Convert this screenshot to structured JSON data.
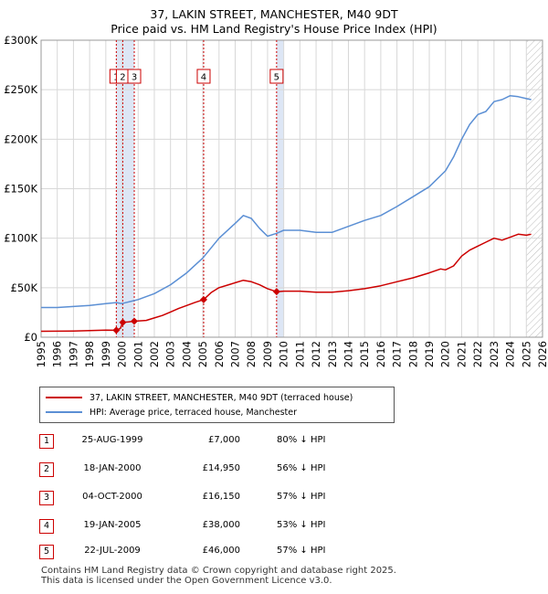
{
  "title_line1": "37, LAKIN STREET, MANCHESTER, M40 9DT",
  "title_line2": "Price paid vs. HM Land Registry's House Price Index (HPI)",
  "colors": {
    "price": "#cc0000",
    "hpi": "#5b8fd4",
    "shade": "#dde6f5",
    "grid": "#d8d8d8"
  },
  "legend": {
    "price_label": "37, LAKIN STREET, MANCHESTER, M40 9DT (terraced house)",
    "hpi_label": "HPI: Average price, terraced house, Manchester"
  },
  "transactions": [
    {
      "num": "1",
      "date": "25-AUG-1999",
      "price": "£7,000",
      "hpi": "80% ↓ HPI"
    },
    {
      "num": "2",
      "date": "18-JAN-2000",
      "price": "£14,950",
      "hpi": "56% ↓ HPI"
    },
    {
      "num": "3",
      "date": "04-OCT-2000",
      "price": "£16,150",
      "hpi": "57% ↓ HPI"
    },
    {
      "num": "4",
      "date": "19-JAN-2005",
      "price": "£38,000",
      "hpi": "53% ↓ HPI"
    },
    {
      "num": "5",
      "date": "22-JUL-2009",
      "price": "£46,000",
      "hpi": "57% ↓ HPI"
    }
  ],
  "footer_line1": "Contains HM Land Registry data © Crown copyright and database right 2025.",
  "footer_line2": "This data is licensed under the Open Government Licence v3.0.",
  "chart_data": {
    "type": "line",
    "title": "Price paid vs. HM Land Registry's House Price Index (HPI)",
    "xlabel": "",
    "ylabel": "",
    "xlim": [
      1995,
      2026
    ],
    "ylim": [
      0,
      300000
    ],
    "y_ticks": [
      0,
      50000,
      100000,
      150000,
      200000,
      250000,
      300000
    ],
    "y_tick_labels": [
      "£0",
      "£50K",
      "£100K",
      "£150K",
      "£200K",
      "£250K",
      "£300K"
    ],
    "x_ticks": [
      "1995",
      "1996",
      "1997",
      "1998",
      "1999",
      "2000",
      "2001",
      "2002",
      "2003",
      "2004",
      "2005",
      "2006",
      "2007",
      "2008",
      "2009",
      "2010",
      "2011",
      "2012",
      "2013",
      "2014",
      "2015",
      "2016",
      "2017",
      "2018",
      "2019",
      "2020",
      "2021",
      "2022",
      "2023",
      "2024",
      "2025",
      "2026"
    ],
    "shaded_ranges": [
      [
        1999.65,
        2000.76
      ],
      [
        2009.56,
        2010.0
      ]
    ],
    "hatched_from": 2025.0,
    "series": [
      {
        "name": "37, LAKIN STREET, MANCHESTER, M40 9DT (terraced house)",
        "x": [
          1995,
          1996,
          1997,
          1998,
          1999.0,
          1999.65,
          1999.65,
          1999.9,
          2000.05,
          2000.05,
          2000.4,
          2000.76,
          2000.76,
          2001.5,
          2002,
          2002.5,
          2003,
          2003.5,
          2004,
          2004.5,
          2005.05,
          2005.05,
          2005.5,
          2006,
          2006.5,
          2007,
          2007.5,
          2008,
          2008.5,
          2009,
          2009.56,
          2009.56,
          2010,
          2011,
          2012,
          2013,
          2014,
          2015,
          2016,
          2017,
          2018,
          2019,
          2019.7,
          2020,
          2020.5,
          2021,
          2021.5,
          2022,
          2022.5,
          2023,
          2023.5,
          2024,
          2024.5,
          2025,
          2025.3
        ],
        "values": [
          6000,
          6100,
          6300,
          6700,
          7200,
          7000,
          7000,
          9000,
          14950,
          14950,
          15400,
          16150,
          16150,
          17000,
          19500,
          22000,
          25500,
          29000,
          32000,
          35000,
          38000,
          38000,
          45000,
          50000,
          52500,
          55000,
          57500,
          56000,
          53000,
          49000,
          46000,
          46000,
          46500,
          46500,
          45500,
          45500,
          47000,
          49000,
          52000,
          56000,
          60000,
          65000,
          69000,
          68000,
          72000,
          82000,
          88000,
          92000,
          96000,
          100000,
          98000,
          101000,
          104000,
          103000,
          104000
        ]
      },
      {
        "name": "HPI: Average price, terraced house, Manchester",
        "x": [
          1995,
          1996,
          1997,
          1998,
          1999,
          1999.65,
          2000,
          2000.76,
          2001,
          2002,
          2003,
          2004,
          2005,
          2006,
          2007,
          2007.5,
          2008,
          2008.5,
          2009,
          2009.56,
          2010,
          2011,
          2012,
          2013,
          2014,
          2015,
          2016,
          2017,
          2018,
          2019,
          2020,
          2020.5,
          2021,
          2021.5,
          2022,
          2022.5,
          2023,
          2023.5,
          2024,
          2024.5,
          2025,
          2025.3
        ],
        "values": [
          30000,
          30000,
          31000,
          32000,
          34000,
          35000,
          34000,
          37000,
          38000,
          44000,
          53000,
          65000,
          80000,
          100000,
          115000,
          123000,
          120000,
          110000,
          102000,
          105000,
          108000,
          108000,
          106000,
          106000,
          112000,
          118000,
          123000,
          132000,
          142000,
          152000,
          168000,
          182000,
          200000,
          215000,
          225000,
          228000,
          238000,
          240000,
          244000,
          243000,
          241000,
          240000
        ]
      }
    ],
    "markers": [
      {
        "label": "1",
        "x": 1999.65,
        "y": 7000
      },
      {
        "label": "2",
        "x": 2000.05,
        "y": 14950
      },
      {
        "label": "3",
        "x": 2000.76,
        "y": 16150
      },
      {
        "label": "4",
        "x": 2005.05,
        "y": 38000
      },
      {
        "label": "5",
        "x": 2009.56,
        "y": 46000
      }
    ]
  }
}
